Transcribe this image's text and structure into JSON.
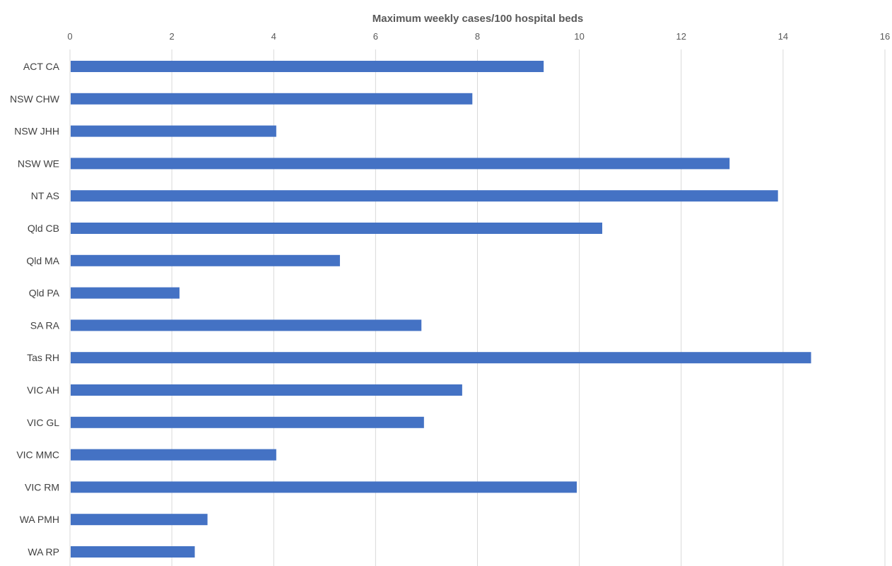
{
  "chart_data": {
    "type": "bar",
    "orientation": "horizontal",
    "title": "Maximum weekly cases/100 hospital beds",
    "title_position": "top",
    "x_axis_position": "top",
    "xlabel": "",
    "ylabel": "",
    "xlim": [
      0,
      16
    ],
    "x_ticks": [
      0,
      2,
      4,
      6,
      8,
      10,
      12,
      14,
      16
    ],
    "grid": true,
    "legend": "none",
    "categories": [
      "ACT CA",
      "NSW CHW",
      "NSW JHH",
      "NSW WE",
      "NT AS",
      "Qld CB",
      "Qld MA",
      "Qld PA",
      "SA RA",
      "Tas RH",
      "VIC AH",
      "VIC GL",
      "VIC MMC",
      "VIC RM",
      "WA PMH",
      "WA RP"
    ],
    "values": [
      9.3,
      7.9,
      4.05,
      12.95,
      13.9,
      10.45,
      5.3,
      2.15,
      6.9,
      14.55,
      7.7,
      6.95,
      4.05,
      9.95,
      2.7,
      2.45
    ],
    "colors": {
      "bar": "#4472C4",
      "grid": "#D9D9D9",
      "text": "#595959"
    }
  }
}
